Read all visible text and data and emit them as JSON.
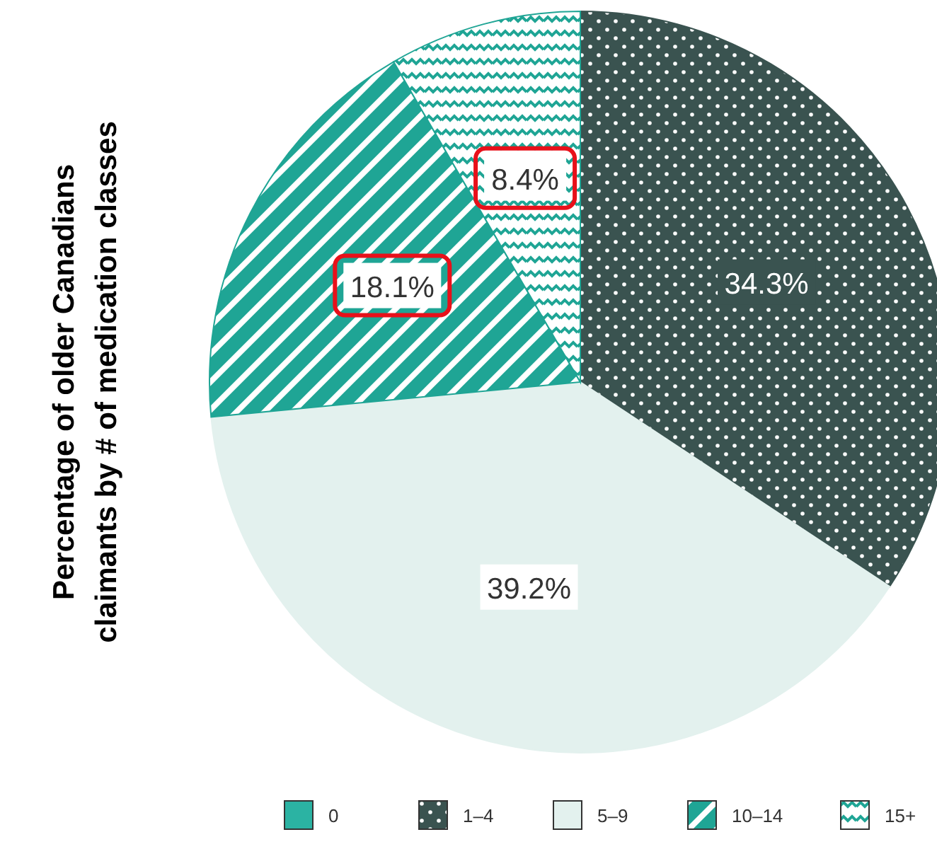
{
  "chart_data": {
    "type": "pie",
    "ylabel": "Percentage of older Canadians claimants by # of medication classes",
    "categories": [
      "0",
      "1–4",
      "5–9",
      "10–14",
      "15+"
    ],
    "values": [
      0,
      34.3,
      39.2,
      18.1,
      8.4
    ],
    "colors": [
      "#2bb3a3",
      "#3a5350",
      "#e3f1ee",
      "#1fa595",
      "#1fa595"
    ],
    "value_labels": [
      null,
      "34.3%",
      "39.2%",
      "18.1%",
      "8.4%"
    ],
    "legend": "bottom"
  }
}
